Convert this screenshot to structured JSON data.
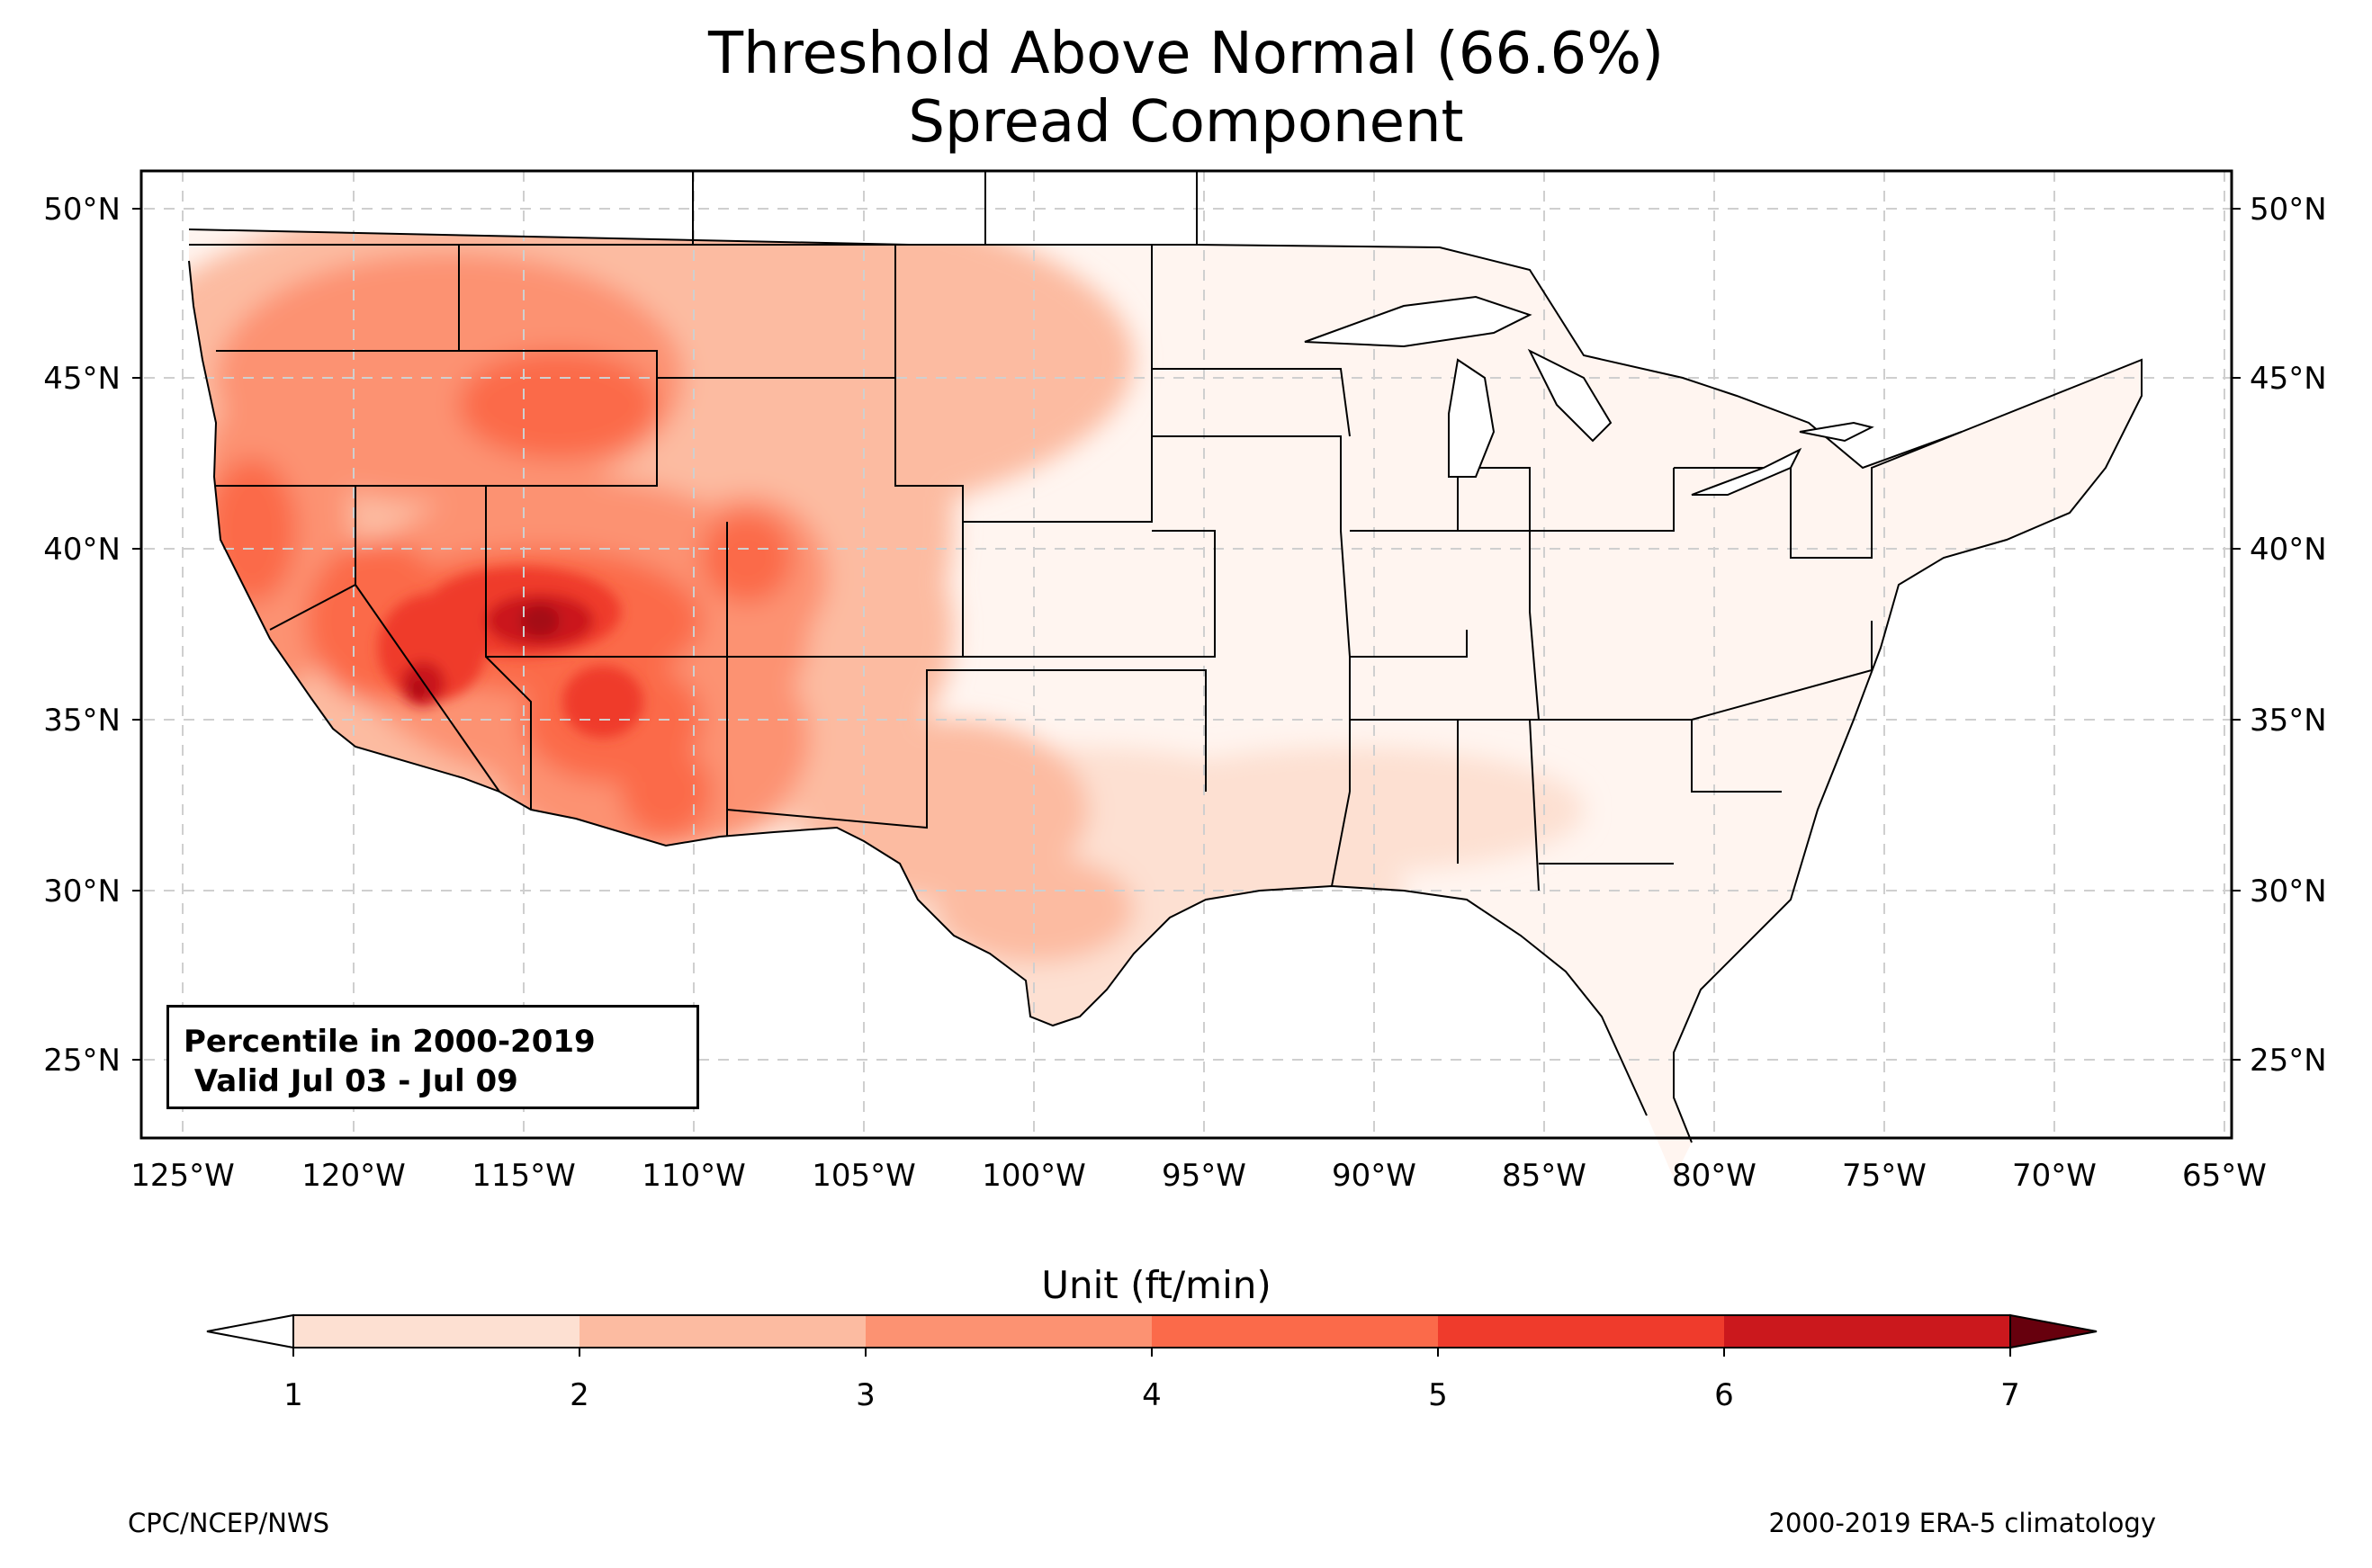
{
  "title": {
    "line1": "Threshold Above Normal (66.6%)",
    "line2": "Spread Component"
  },
  "map": {
    "lat_ticks": [
      "50°N",
      "45°N",
      "40°N",
      "35°N",
      "30°N",
      "25°N"
    ],
    "lon_ticks": [
      "125°W",
      "120°W",
      "115°W",
      "110°W",
      "105°W",
      "100°W",
      "95°W",
      "90°W",
      "85°W",
      "80°W",
      "75°W",
      "70°W",
      "65°W"
    ],
    "grid": true,
    "info_box": {
      "line1": "Percentile in 2000-2019",
      "line2": " Valid Jul 03 - Jul 09"
    }
  },
  "colorbar": {
    "title": "Unit (ft/min)",
    "ticks": [
      "1",
      "2",
      "3",
      "4",
      "5",
      "6",
      "7"
    ],
    "colors": [
      "#fde0d2",
      "#fcbba1",
      "#fc9272",
      "#fb6a4a",
      "#ef3b2c",
      "#cb181d",
      "#a50f15",
      "#67000d"
    ],
    "under_color": "#ffffff",
    "extend": "both"
  },
  "footer": {
    "left": "CPC/NCEP/NWS",
    "right": "2000-2019 ERA-5 climatology"
  }
}
